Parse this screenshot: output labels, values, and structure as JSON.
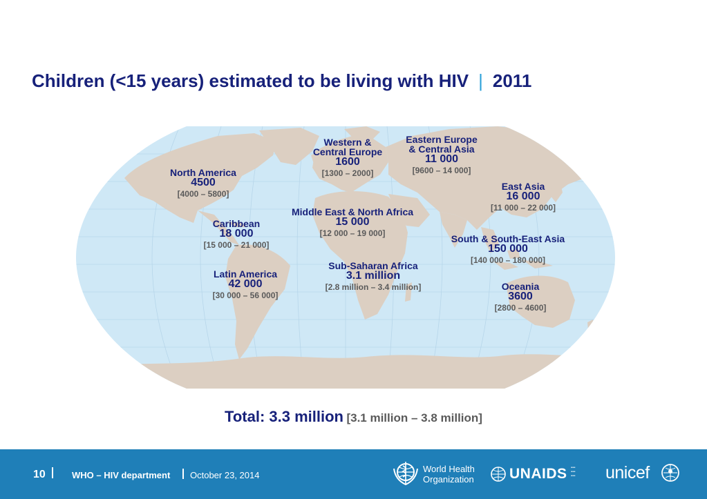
{
  "title": {
    "main": "Children (<15 years) estimated to be living with HIV",
    "separator": "|",
    "year": "2011"
  },
  "colors": {
    "ocean": "#cfe8f6",
    "land": "#dccfc2",
    "label_dark_blue": "#17217a",
    "range_gray": "#5a5a5a",
    "footer_blue": "#1f7fb8"
  },
  "regions": [
    {
      "name": "Western & Central Europe",
      "name_lines": [
        "Western &",
        "Central Europe"
      ],
      "value": "1600",
      "range": "[1300 – 2000]"
    },
    {
      "name": "Eastern Europe & Central Asia",
      "name_lines": [
        "Eastern Europe",
        "& Central Asia"
      ],
      "value": "11 000",
      "range": "[9600 – 14 000]"
    },
    {
      "name": "North America",
      "name_lines": [
        "North America"
      ],
      "value": "4500",
      "range": "[4000 – 5800]"
    },
    {
      "name": "East Asia",
      "name_lines": [
        "East Asia"
      ],
      "value": "16 000",
      "range": "[11 000 – 22 000]"
    },
    {
      "name": "Middle East & North Africa",
      "name_lines": [
        "Middle East & North Africa"
      ],
      "value": "15 000",
      "range": "[12 000 – 19 000]"
    },
    {
      "name": "Caribbean",
      "name_lines": [
        "Caribbean"
      ],
      "value": "18 000",
      "range": "[15 000 – 21 000]"
    },
    {
      "name": "South & South-East Asia",
      "name_lines": [
        "South & South-East Asia"
      ],
      "value": "150 000",
      "range": "[140 000 – 180 000]"
    },
    {
      "name": "Sub-Saharan Africa",
      "name_lines": [
        "Sub-Saharan Africa"
      ],
      "value": "3.1 million",
      "range": "[2.8 million – 3.4 million]"
    },
    {
      "name": "Latin America",
      "name_lines": [
        "Latin America"
      ],
      "value": "42 000",
      "range": "[30 000 – 56 000]"
    },
    {
      "name": "Oceania",
      "name_lines": [
        "Oceania"
      ],
      "value": "3600",
      "range": "[2800 – 4600]"
    }
  ],
  "total": {
    "label": "Total: 3.3 million",
    "range": "[3.1 million – 3.8 million]"
  },
  "footer": {
    "page_number": "10",
    "department": "WHO – HIV department",
    "date": "October 23, 2014",
    "logos": [
      {
        "name": "World Health Organization",
        "text_lines": [
          "World Health",
          "Organization"
        ],
        "icon": "who-emblem-icon"
      },
      {
        "name": "UNAIDS",
        "text": "UNAIDS",
        "icon": "unaids-globe-icon"
      },
      {
        "name": "unicef",
        "text": "unicef",
        "icon": "unicef-emblem-icon"
      }
    ]
  }
}
